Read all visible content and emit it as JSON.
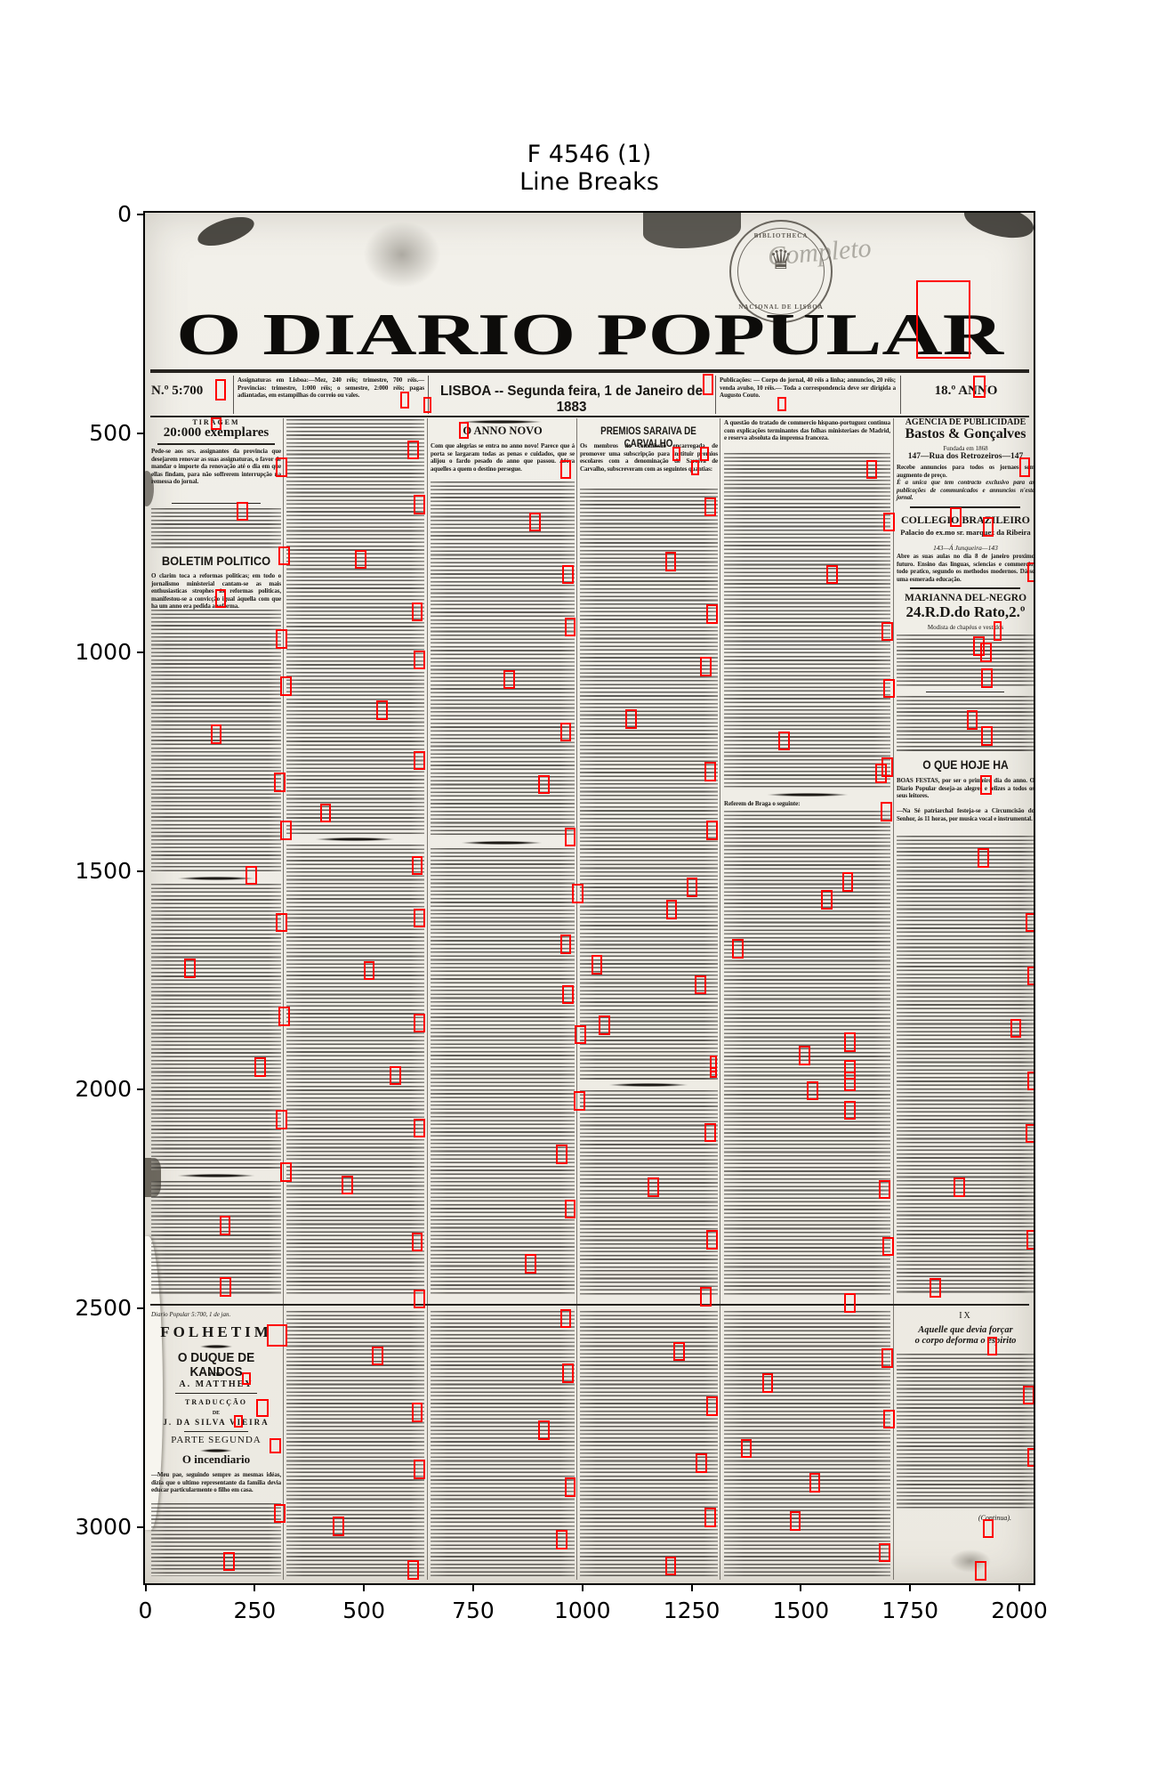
{
  "chart_data": {
    "type": "annotated_image",
    "title": "F 4546 (1)",
    "subtitle": "Line Breaks",
    "x_ticks": [
      0,
      250,
      500,
      750,
      1000,
      1250,
      1500,
      1750,
      2000
    ],
    "y_ticks": [
      0,
      500,
      1000,
      1500,
      2000,
      2500,
      3000
    ],
    "x_range": [
      0,
      2032
    ],
    "y_range": [
      0,
      3135
    ],
    "image_description": "Scanned front page of the newspaper 'O Diario Popular', Lisboa, 1 de Janeiro de 1883, with red rectangles marking detected line breaks",
    "annotation_color": "#ff0000",
    "line_break_boxes": [
      [
        1765,
        155,
        125,
        178
      ],
      [
        160,
        380,
        26,
        50
      ],
      [
        584,
        408,
        20,
        40
      ],
      [
        637,
        421,
        18,
        36
      ],
      [
        1276,
        368,
        24,
        48
      ],
      [
        1448,
        420,
        20,
        34
      ],
      [
        1895,
        372,
        28,
        52
      ],
      [
        151,
        468,
        24,
        28
      ],
      [
        718,
        478,
        22,
        38
      ],
      [
        1208,
        535,
        18,
        33
      ],
      [
        1271,
        535,
        20,
        33
      ],
      [
        1249,
        566,
        20,
        33
      ],
      [
        300,
        560
      ],
      [
        210,
        660
      ],
      [
        305,
        762
      ],
      [
        160,
        860
      ],
      [
        300,
        952
      ],
      [
        310,
        1060
      ],
      [
        150,
        1170
      ],
      [
        295,
        1280
      ],
      [
        310,
        1390
      ],
      [
        230,
        1492
      ],
      [
        300,
        1600
      ],
      [
        90,
        1705
      ],
      [
        305,
        1815
      ],
      [
        250,
        1930
      ],
      [
        300,
        2050
      ],
      [
        310,
        2170
      ],
      [
        170,
        2292
      ],
      [
        171,
        2433
      ],
      [
        279,
        2541,
        46,
        50
      ],
      [
        222,
        2649,
        20,
        30
      ],
      [
        254,
        2712,
        28,
        40
      ],
      [
        203,
        2748,
        20,
        28
      ],
      [
        285,
        2800,
        26,
        36
      ],
      [
        295,
        2950
      ],
      [
        180,
        3060
      ],
      [
        600,
        520
      ],
      [
        615,
        645
      ],
      [
        480,
        770
      ],
      [
        610,
        890
      ],
      [
        615,
        1000
      ],
      [
        530,
        1115
      ],
      [
        615,
        1230
      ],
      [
        400,
        1350
      ],
      [
        610,
        1470
      ],
      [
        615,
        1590
      ],
      [
        500,
        1710
      ],
      [
        615,
        1830
      ],
      [
        560,
        1950
      ],
      [
        615,
        2070
      ],
      [
        450,
        2200
      ],
      [
        610,
        2330
      ],
      [
        615,
        2460
      ],
      [
        520,
        2590
      ],
      [
        610,
        2720
      ],
      [
        615,
        2850
      ],
      [
        430,
        2980
      ],
      [
        600,
        3080
      ],
      [
        950,
        565
      ],
      [
        880,
        685
      ],
      [
        955,
        805
      ],
      [
        960,
        925
      ],
      [
        820,
        1045
      ],
      [
        950,
        1165
      ],
      [
        900,
        1285
      ],
      [
        960,
        1405
      ],
      [
        977,
        1534
      ],
      [
        950,
        1650
      ],
      [
        955,
        1765
      ],
      [
        983,
        1856
      ],
      [
        981,
        2008
      ],
      [
        940,
        2130
      ],
      [
        960,
        2255
      ],
      [
        870,
        2380
      ],
      [
        950,
        2505
      ],
      [
        955,
        2630
      ],
      [
        900,
        2760
      ],
      [
        960,
        2890
      ],
      [
        940,
        3010
      ],
      [
        1280,
        650
      ],
      [
        1190,
        775
      ],
      [
        1285,
        895
      ],
      [
        1270,
        1015
      ],
      [
        1100,
        1135
      ],
      [
        1280,
        1255
      ],
      [
        1285,
        1390
      ],
      [
        1239,
        1520
      ],
      [
        1192,
        1571
      ],
      [
        1021,
        1697
      ],
      [
        1259,
        1742
      ],
      [
        1038,
        1835
      ],
      [
        1292,
        1925,
        16,
        40
      ],
      [
        1292,
        1953,
        16,
        24
      ],
      [
        1280,
        2080
      ],
      [
        1150,
        2205
      ],
      [
        1285,
        2325
      ],
      [
        1270,
        2455
      ],
      [
        1210,
        2580
      ],
      [
        1285,
        2705
      ],
      [
        1260,
        2835
      ],
      [
        1280,
        2960
      ],
      [
        1190,
        3070
      ],
      [
        1650,
        565
      ],
      [
        1690,
        685
      ],
      [
        1560,
        805
      ],
      [
        1685,
        935
      ],
      [
        1690,
        1065
      ],
      [
        1450,
        1185
      ],
      [
        1686,
        1245
      ],
      [
        1683,
        1347
      ],
      [
        1595,
        1508
      ],
      [
        1548,
        1548
      ],
      [
        1343,
        1660
      ],
      [
        1601,
        1874
      ],
      [
        1497,
        1904
      ],
      [
        1601,
        1937
      ],
      [
        1601,
        1963
      ],
      [
        1514,
        1984
      ],
      [
        1601,
        2029
      ],
      [
        1680,
        2210
      ],
      [
        1688,
        2340
      ],
      [
        1600,
        2470
      ],
      [
        1685,
        2595
      ],
      [
        1690,
        2735
      ],
      [
        1412,
        2653
      ],
      [
        1363,
        2802
      ],
      [
        1475,
        2968
      ],
      [
        1520,
        2880
      ],
      [
        1680,
        3040
      ],
      [
        2000,
        560
      ],
      [
        1843,
        673
      ],
      [
        1917,
        696
      ],
      [
        2020,
        800
      ],
      [
        1941,
        934,
        20,
        44
      ],
      [
        1896,
        968
      ],
      [
        1912,
        983
      ],
      [
        1914,
        1042
      ],
      [
        1880,
        1137
      ],
      [
        1914,
        1174
      ],
      [
        1672,
        1259
      ],
      [
        1912,
        1286
      ],
      [
        1906,
        1453
      ],
      [
        2015,
        1600
      ],
      [
        2020,
        1722
      ],
      [
        1980,
        1842
      ],
      [
        2020,
        1962
      ],
      [
        2015,
        2082
      ],
      [
        1850,
        2205
      ],
      [
        2018,
        2325
      ],
      [
        1795,
        2435
      ],
      [
        1927,
        2568,
        24,
        44
      ],
      [
        2010,
        2680
      ],
      [
        2020,
        2822
      ],
      [
        1917,
        2985
      ],
      [
        1900,
        3082
      ]
    ]
  },
  "figure": {
    "title_line1": "F 4546 (1)",
    "title_line2": "Line Breaks"
  },
  "newspaper": {
    "masthead": "O DIARIO POPULAR",
    "stamp_top": "BIBLIOTHECA",
    "stamp_bottom": "NACIONAL DE LISBOA",
    "handwriting": "Completo",
    "dateline": {
      "issue_no": "N.º 5:700",
      "assignaturas": "Assignaturas em Lisboa:—Mez, 240 réis; trimestre, 700 réis.—Provincias: trimestre, 1:000 réis; o semestre, 2:000 réis; pagas adiantadas, em estampilhas do correio ou vales.",
      "place_date": "LISBOA -- Segunda feira, 1 de Janeiro de 1883",
      "publicacoes": "Publicações: — Corpo do jornal, 40 réis a linha; annuncios, 20 réis; venda avulso, 10 réis.— Toda a correspondencia deve ser dirigida a Augusto Couto.",
      "year_label": "18.º ANNO"
    },
    "col1": {
      "tiragem_label": "TIRAGEM",
      "tiragem_value": "20:000 exemplares",
      "intro": "Pede-se aos srs. assignantes da provincia que desejarem renovar as suas assignaturas, o favor de mandar o importe da renovação até o dia em que ellas findam, para não soffrerem interrupção na remessa do jornal.",
      "boletim_heading": "BOLETIM POLITICO",
      "boletim_snippet": "O clarim toca a reformas politicas; em todo o jornalismo ministerial cantam-se as mais enthusiasticas strophes ás reformas politicas, manifestou-se a convicção igual áquella com que ha um anno era pedida a reforma.",
      "ref_line": "Diario Popular 5:700, 1 de jan.",
      "folhetim_label": "FOLHETIM",
      "folhetim_title": "O DUQUE DE KANDOS",
      "por": "POR",
      "author": "A. MATTHEY",
      "trad_label": "TRADUCÇÃO",
      "de": "DE",
      "translator": "J. DA SILVA VIEIRA",
      "part": "PARTE SEGUNDA",
      "chapter": "O incendiario",
      "opening": "—Meu pae, seguindo sempre as mesmas idéas, dizia que o ultimo representante da familia devia educar particularmente o filho em casa."
    },
    "col3": {
      "heading": "O ANNO NOVO",
      "snippet": "Com que alegrias se entra no anno novo! Parece que á porta se largaram todas as penas e cuidados, que se alijou o fardo pesado do anno que passou. Afóra aquelles a quem o destino persegue."
    },
    "col4": {
      "heading": "PREMIOS SARAIVA DE CARVALHO",
      "snippet": "Os membros da commissão encarregada de promover uma subscripção para instituir premios escolares com a denominação de Saraiva de Carvalho, subscreveram com as seguintes quantias:"
    },
    "col5": {
      "snippet": "A questão do tratado de commercio hispano-portuguez continua com explicações terminantes das folhas ministeriaes de Madrid, e reserva absoluta da imprensa franceza.",
      "braga": "Referem de Braga o seguinte:"
    },
    "col6": {
      "agencia_label": "AGENCIA DE PUBLICIDADE",
      "agencia_name": "Bastos & Gonçalves",
      "founded": "Fundada em 1868",
      "address": "147—Rua dos Retrozeiros—147",
      "ad_text": "Recebe annuncios para todos os jornaes sem augmento de preço.",
      "ad_note": "É a unica que tem contracto exclusivo para as publicações de communicados e annuncios n'este jornal.",
      "collegio_heading": "COLLEGIO BRAZILEIRO",
      "collegio_sub": "Palacio do ex.mo sr. marquez da Ribeira",
      "collegio_addr": "143—Á Junqueira—143",
      "collegio_text": "Abre as suas aulas no dia 8 de janeiro proximo futuro. Ensino das linguas, sciencias e commercio, todo pratico, segundo os methodos modernos. Dá-se uma esmerada educação.",
      "marianna_heading": "MARIANNA DEL-NEGRO",
      "marianna_addr": "24.R.D.do Rato,2.º",
      "marianna_sub": "Modista de chapéus e vestidos",
      "hoje_heading": "O QUE HOJE HA",
      "hoje_text": "BOAS FESTAS, por ser o primeiro dia do anno. O Diario Popular deseja-as alegres e felizes a todos os seus leitores.",
      "hoje_text2": "—Na Sé patriarchal festeja-se a Circumcisão do Senhor, ás 11 horas, por musica vocal e instrumental.",
      "chapter_no": "IX",
      "chapter_title1": "Aquelle que devia forçar",
      "chapter_title2": "o corpo deforma o espirito",
      "continua": "(Continua)."
    }
  }
}
